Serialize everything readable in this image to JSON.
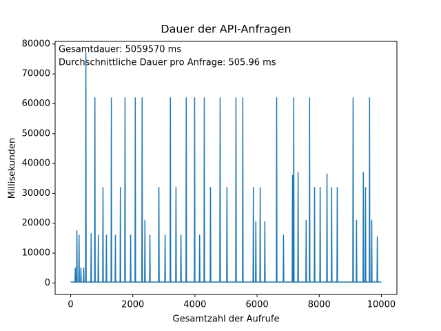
{
  "chart_data": {
    "type": "line",
    "title": "Dauer der API-Anfragen",
    "x_label": "Gesamtzahl der Aufrufe",
    "y_label": "Millisekunden",
    "annotations": [
      "Gesamtdauer: 5059570 ms",
      "Durchschnittliche Dauer pro Anfrage: 505.96 ms"
    ],
    "xlim": [
      -500,
      10500
    ],
    "xticks": [
      0,
      2000,
      4000,
      6000,
      8000,
      10000
    ],
    "ylim": [
      -3860,
      80900
    ],
    "yticks": [
      0,
      10000,
      20000,
      30000,
      40000,
      50000,
      60000,
      70000,
      80000
    ],
    "series": [
      {
        "color": "#1f77b4",
        "x": [
          0,
          140,
          150,
          160,
          190,
          200,
          210,
          260,
          270,
          280,
          320,
          330,
          340,
          410,
          420,
          430,
          480,
          490,
          500,
          650,
          660,
          670,
          770,
          780,
          790,
          880,
          890,
          900,
          1030,
          1040,
          1050,
          1140,
          1150,
          1160,
          1300,
          1310,
          1320,
          1430,
          1440,
          1450,
          1590,
          1600,
          1610,
          1740,
          1750,
          1760,
          1920,
          1930,
          1940,
          2070,
          2080,
          2090,
          2290,
          2300,
          2310,
          2380,
          2390,
          2400,
          2540,
          2550,
          2560,
          2830,
          2840,
          2850,
          3030,
          3040,
          3050,
          3200,
          3210,
          3220,
          3380,
          3390,
          3400,
          3540,
          3550,
          3560,
          3710,
          3720,
          3730,
          3980,
          3990,
          4000,
          4140,
          4150,
          4160,
          4290,
          4300,
          4310,
          4490,
          4500,
          4510,
          4800,
          4810,
          4820,
          5020,
          5030,
          5040,
          5310,
          5320,
          5330,
          5530,
          5540,
          5550,
          5870,
          5880,
          5890,
          5950,
          5960,
          5970,
          6090,
          6100,
          6110,
          6240,
          6250,
          6260,
          6620,
          6630,
          6640,
          6840,
          6850,
          6860,
          7130,
          7140,
          7150,
          7170,
          7180,
          7190,
          7310,
          7320,
          7330,
          7570,
          7580,
          7590,
          7680,
          7690,
          7700,
          7840,
          7850,
          7860,
          8020,
          8030,
          8040,
          8240,
          8250,
          8260,
          8390,
          8400,
          8410,
          8570,
          8580,
          8590,
          9080,
          9090,
          9100,
          9190,
          9200,
          9210,
          9410,
          9420,
          9430,
          9480,
          9490,
          9500,
          9610,
          9620,
          9630,
          9680,
          9690,
          9700,
          9860,
          9870,
          9880,
          9999
        ],
        "values": [
          300,
          300,
          5000,
          300,
          300,
          17500,
          300,
          300,
          16000,
          300,
          300,
          5000,
          300,
          300,
          5000,
          300,
          300,
          77000,
          300,
          300,
          16500,
          300,
          300,
          62000,
          300,
          300,
          16000,
          300,
          300,
          32000,
          300,
          300,
          16000,
          300,
          300,
          62000,
          300,
          300,
          16000,
          300,
          300,
          32000,
          300,
          300,
          62000,
          300,
          300,
          16000,
          300,
          300,
          62000,
          300,
          300,
          62000,
          300,
          300,
          21000,
          300,
          300,
          16000,
          300,
          300,
          32000,
          300,
          300,
          16000,
          300,
          300,
          62000,
          300,
          300,
          32000,
          300,
          300,
          16000,
          300,
          300,
          62000,
          300,
          300,
          62000,
          300,
          300,
          16000,
          300,
          300,
          62000,
          300,
          300,
          32000,
          300,
          300,
          62000,
          300,
          300,
          32000,
          300,
          300,
          62000,
          300,
          300,
          62000,
          300,
          300,
          32000,
          300,
          300,
          20500,
          300,
          300,
          32000,
          300,
          300,
          20500,
          300,
          300,
          62000,
          300,
          300,
          16000,
          300,
          300,
          36000,
          300,
          300,
          62000,
          300,
          300,
          37000,
          300,
          300,
          21000,
          300,
          300,
          62000,
          300,
          300,
          32000,
          300,
          300,
          32000,
          300,
          300,
          36500,
          300,
          300,
          32000,
          300,
          300,
          32000,
          300,
          300,
          62000,
          300,
          300,
          21000,
          300,
          300,
          37000,
          300,
          300,
          32000,
          300,
          300,
          62000,
          300,
          300,
          21000,
          300,
          300,
          15500,
          300,
          300
        ]
      }
    ]
  }
}
